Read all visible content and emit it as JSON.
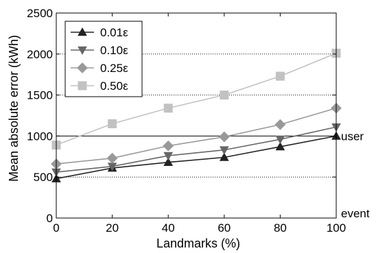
{
  "chart_data": {
    "type": "line",
    "xlabel": "Landmarks (%)",
    "ylabel": "Mean absolute error (kWh)",
    "x": [
      0,
      20,
      40,
      60,
      80,
      100
    ],
    "xlim": [
      0,
      100
    ],
    "ylim": [
      0,
      2500
    ],
    "xticks": [
      "0",
      "20",
      "40",
      "60",
      "80",
      "100"
    ],
    "yticks": [
      "0",
      "500",
      "1000",
      "1500",
      "2000",
      "2500"
    ],
    "legend_position": "top-left",
    "grid": "dotted horizontal reference lines at 500, 1500, 2000; solid line at 1000",
    "reference_lines": [
      {
        "y": 1000,
        "label": "user"
      },
      {
        "y": 0,
        "label": "event"
      }
    ],
    "series": [
      {
        "name": "0.01ε",
        "marker": "triangle-up",
        "color": "#222222",
        "values": [
          480,
          610,
          680,
          740,
          870,
          1000
        ]
      },
      {
        "name": "0.10ε",
        "marker": "triangle-down",
        "color": "#666666",
        "values": [
          560,
          630,
          760,
          830,
          960,
          1110
        ]
      },
      {
        "name": "0.25ε",
        "marker": "diamond",
        "color": "#999999",
        "values": [
          660,
          730,
          880,
          990,
          1140,
          1340
        ]
      },
      {
        "name": "0.50ε",
        "marker": "square",
        "color": "#c2c2c2",
        "values": [
          890,
          1150,
          1340,
          1500,
          1730,
          2010
        ]
      }
    ]
  }
}
